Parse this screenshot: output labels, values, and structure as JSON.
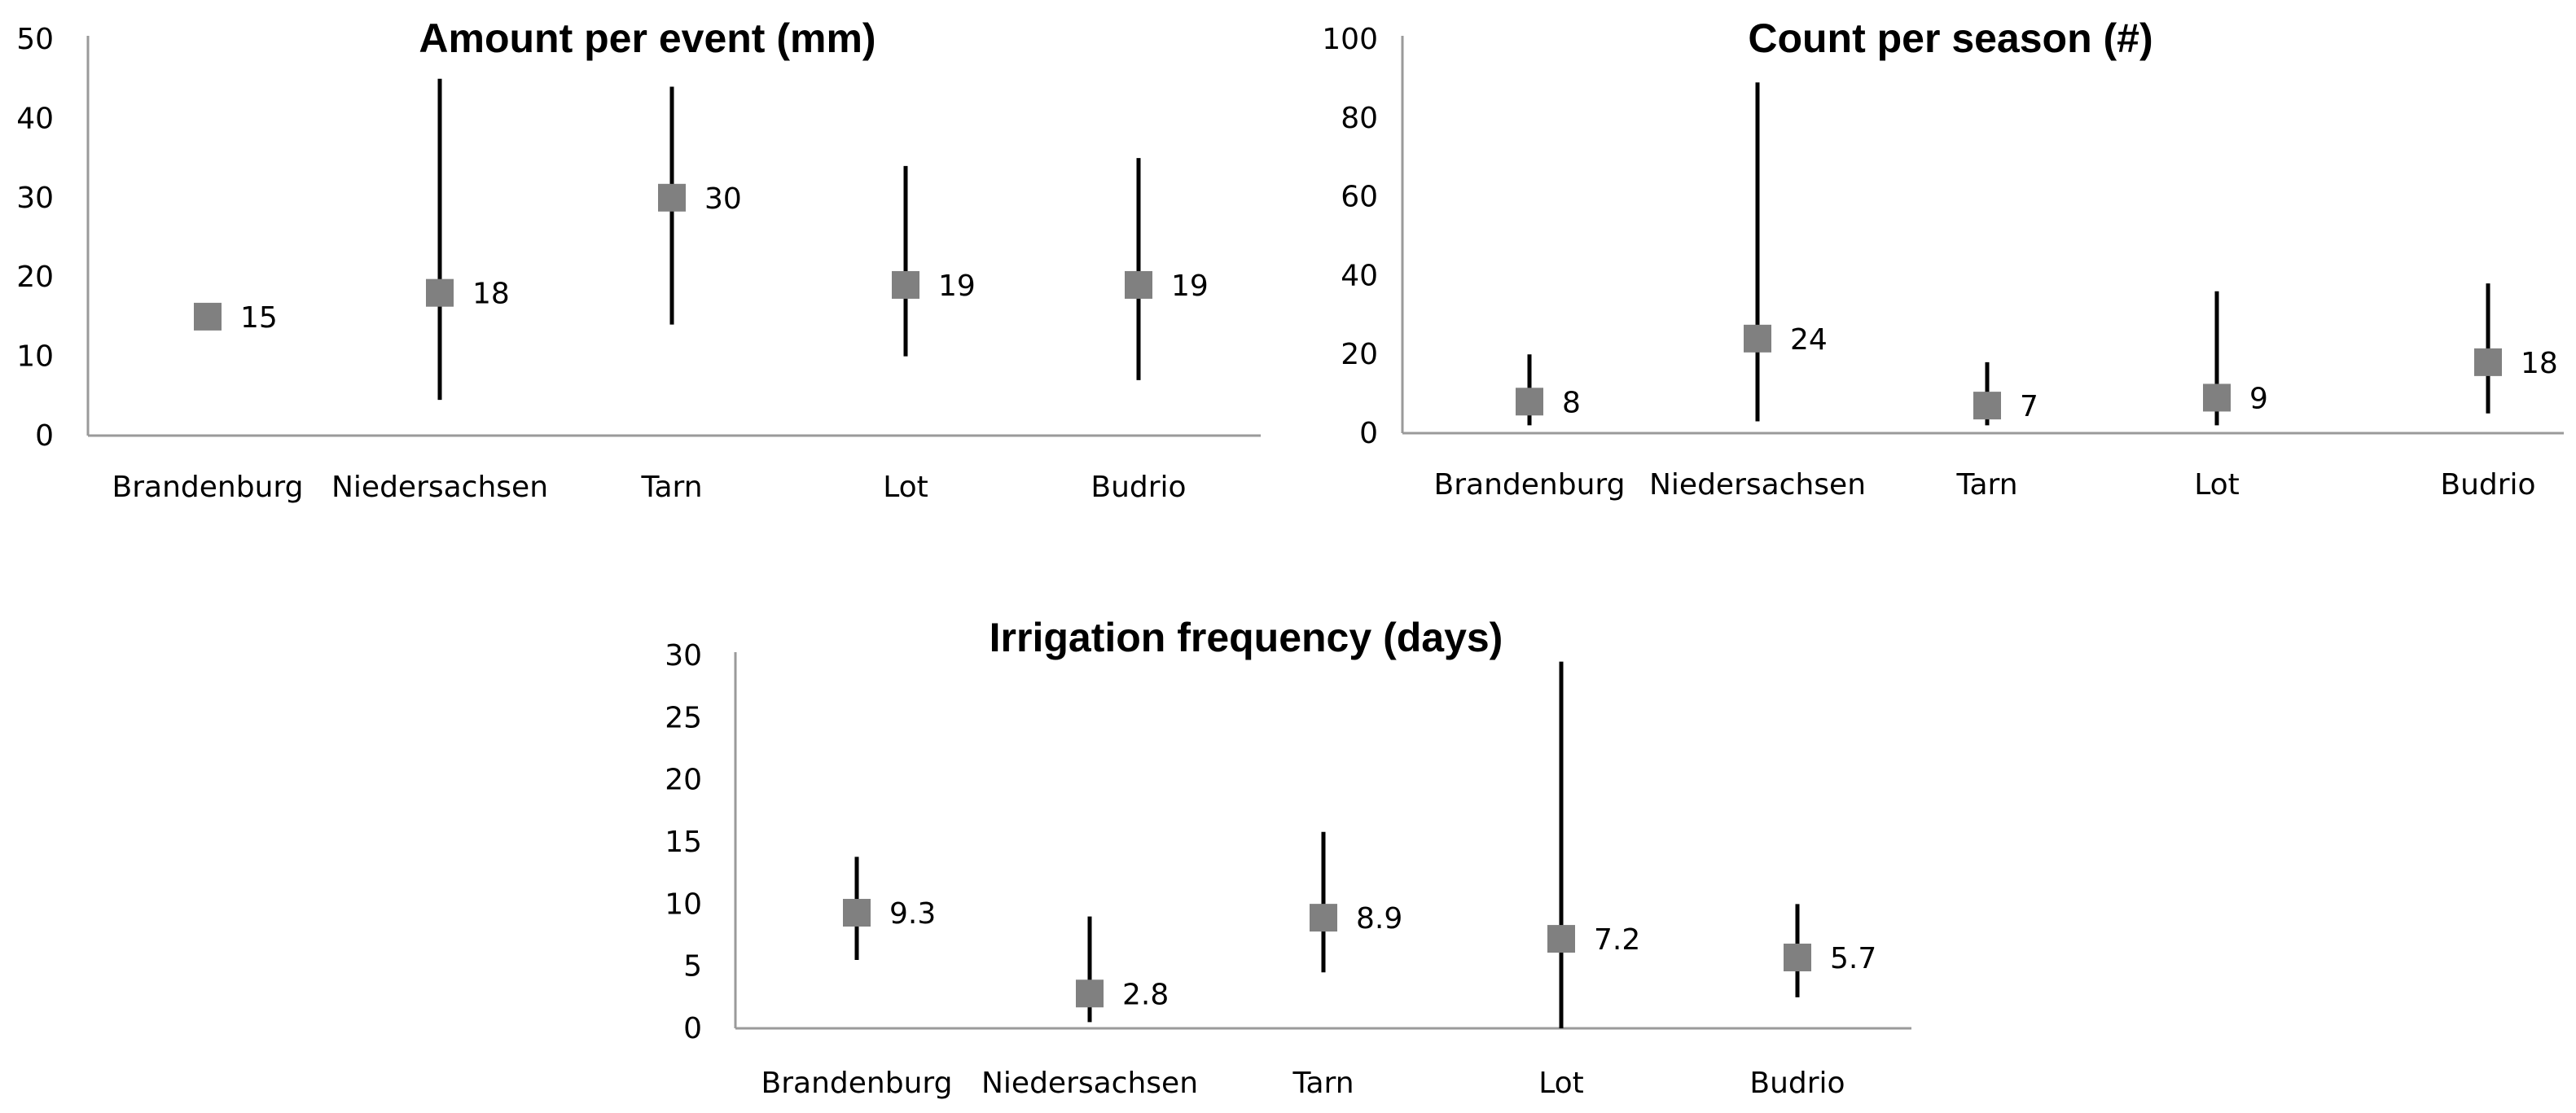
{
  "chart_data": [
    {
      "type": "scatter",
      "title": "Amount per event (mm)",
      "categories": [
        "Brandenburg",
        "Niedersachsen",
        "Tarn",
        "Lot",
        "Budrio"
      ],
      "values": [
        15,
        18,
        30,
        19,
        19
      ],
      "value_labels": [
        "15",
        "18",
        "30",
        "19",
        "19"
      ],
      "error_low": [
        null,
        4.5,
        14,
        10,
        7
      ],
      "error_high": [
        null,
        45,
        44,
        34,
        35
      ],
      "ylim": [
        0,
        50
      ],
      "yticks": [
        "0",
        "10",
        "20",
        "30",
        "40",
        "50"
      ],
      "grid": false
    },
    {
      "type": "scatter",
      "title": "Count per season (#)",
      "categories": [
        "Brandenburg",
        "Niedersachsen",
        "Tarn",
        "Lot",
        "Budrio"
      ],
      "values": [
        8,
        24,
        7,
        9,
        18
      ],
      "value_labels": [
        "8",
        "24",
        "7",
        "9",
        "18"
      ],
      "error_low": [
        2,
        3,
        2,
        2,
        5
      ],
      "error_high": [
        20,
        89,
        18,
        36,
        38
      ],
      "ylim": [
        0,
        100
      ],
      "yticks": [
        "0",
        "20",
        "40",
        "60",
        "80",
        "100"
      ],
      "grid": false
    },
    {
      "type": "scatter",
      "title": "Irrigation frequency (days)",
      "categories": [
        "Brandenburg",
        "Niedersachsen",
        "Tarn",
        "Lot",
        "Budrio"
      ],
      "values": [
        9.3,
        2.8,
        8.9,
        7.2,
        5.7
      ],
      "value_labels": [
        "9.3",
        "2.8",
        "8.9",
        "7.2",
        "5.7"
      ],
      "error_low": [
        5.5,
        0.5,
        4.5,
        0,
        2.5
      ],
      "error_high": [
        13.8,
        9,
        15.8,
        29.5,
        10
      ],
      "ylim": [
        0,
        30
      ],
      "yticks": [
        "0",
        "5",
        "10",
        "15",
        "20",
        "25",
        "30"
      ],
      "grid": false
    }
  ],
  "colors": {
    "marker": "#808080",
    "errorbar": "#000000",
    "axis": "#9a9a9a"
  }
}
